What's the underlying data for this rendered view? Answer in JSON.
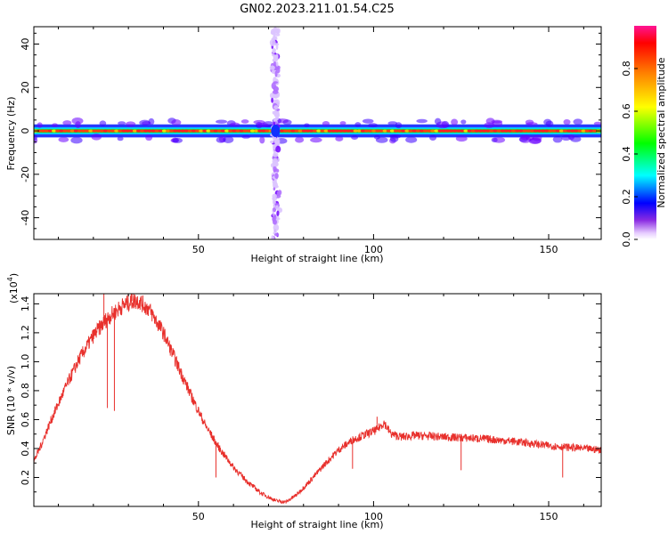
{
  "title": "GN02.2023.211.01.54.C25",
  "chart_data": [
    {
      "type": "heatmap",
      "xlabel": "Height of straight line (km)",
      "ylabel": "Frequency (Hz)",
      "xlim": [
        3,
        165
      ],
      "ylim": [
        -50,
        48
      ],
      "xticks": [
        50,
        100,
        150
      ],
      "yticks": [
        40,
        20,
        0,
        -20,
        -40
      ],
      "grid": false,
      "features": {
        "carrier_band": {
          "frequency": 0,
          "half_width": 3,
          "x_range": [
            3,
            165
          ],
          "peak_value": 0.85
        },
        "vertical_spread": {
          "x": 72,
          "frequency_range": [
            -50,
            48
          ],
          "peak_value": 0.15
        }
      },
      "colorbar": {
        "label": "Normalized spectral amplitude",
        "range": [
          0,
          1
        ],
        "ticks": [
          "0.0",
          "0.2",
          "0.4",
          "0.6",
          "0.8"
        ],
        "tick_values": [
          0.0,
          0.2,
          0.4,
          0.6,
          0.8
        ]
      }
    },
    {
      "type": "line",
      "xlabel": "Height of straight line (km)",
      "ylabel": "SNR (10 * v/v)",
      "multiplier_label": "(x10",
      "multiplier_exp": "4",
      "xlim": [
        3,
        165
      ],
      "ylim": [
        0,
        1.47
      ],
      "xticks": [
        50,
        100,
        150
      ],
      "yticks": [
        1.4,
        1.2,
        1.0,
        0.8,
        0.6,
        0.4,
        0.2
      ],
      "ytick_labels": [
        "1.4",
        "1.2",
        "1.0",
        "0.8",
        "0.6",
        "0.4",
        "0.2"
      ],
      "grid": false,
      "series": [
        {
          "color": "#e8302c",
          "x": [
            3,
            5,
            8,
            12,
            16,
            20,
            24,
            28,
            31,
            33,
            36,
            40,
            44,
            48,
            52,
            56,
            60,
            64,
            68,
            72,
            75,
            78,
            82,
            86,
            90,
            94,
            98,
            101,
            103,
            105,
            108,
            112,
            120,
            130,
            140,
            150,
            160,
            165
          ],
          "y": [
            0.31,
            0.42,
            0.6,
            0.82,
            1.02,
            1.18,
            1.3,
            1.38,
            1.42,
            1.42,
            1.36,
            1.2,
            0.98,
            0.76,
            0.56,
            0.4,
            0.27,
            0.17,
            0.09,
            0.04,
            0.03,
            0.08,
            0.18,
            0.29,
            0.39,
            0.46,
            0.5,
            0.53,
            0.58,
            0.5,
            0.48,
            0.49,
            0.48,
            0.47,
            0.45,
            0.42,
            0.4,
            0.39
          ]
        }
      ],
      "dips": [
        {
          "x": 24,
          "y": 0.68
        },
        {
          "x": 26,
          "y": 0.66
        },
        {
          "x": 55,
          "y": 0.2
        },
        {
          "x": 63,
          "y": 0.18
        },
        {
          "x": 94,
          "y": 0.26
        },
        {
          "x": 125,
          "y": 0.25
        },
        {
          "x": 154,
          "y": 0.2
        }
      ]
    }
  ]
}
